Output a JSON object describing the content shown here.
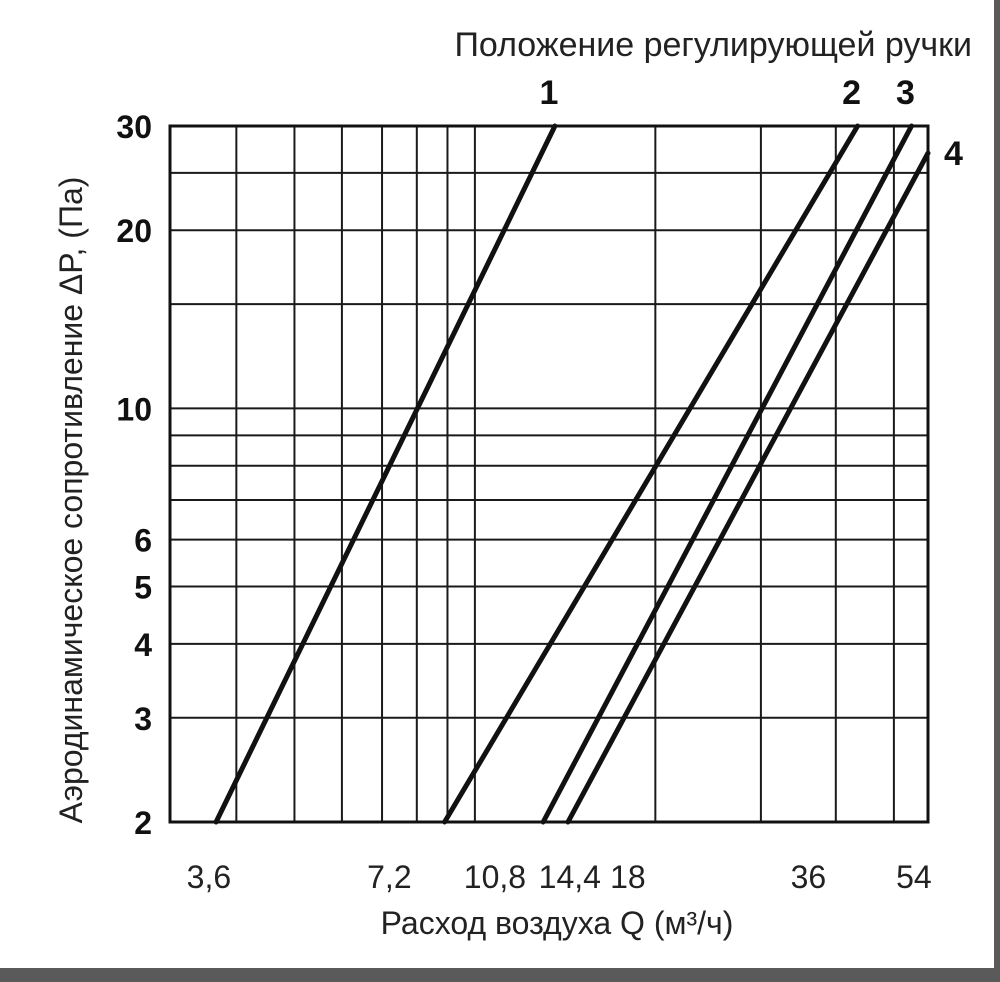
{
  "chart_data": {
    "type": "line",
    "title": "Положение регулирующей ручки",
    "xlabel": "Расход воздуха Q (м³/ч)",
    "ylabel": "Аэродинамическое сопротивление ΔP, (Па)",
    "x_scale": "log",
    "y_scale": "log",
    "xlim": [
      3.1,
      57
    ],
    "ylim": [
      2,
      30
    ],
    "x_ticks": [
      "3,6",
      "7,2",
      "10,8",
      "14,4",
      "18",
      "36",
      "54"
    ],
    "y_ticks": [
      "2",
      "3",
      "4",
      "5",
      "6",
      "10",
      "20",
      "30"
    ],
    "grid": true,
    "series": [
      {
        "name": "1",
        "x": [
          3.7,
          13.6
        ],
        "y": [
          2,
          30
        ]
      },
      {
        "name": "2",
        "x": [
          8.9,
          43.5
        ],
        "y": [
          2,
          30
        ]
      },
      {
        "name": "3",
        "x": [
          13.0,
          53.5
        ],
        "y": [
          2,
          30
        ]
      },
      {
        "name": "4",
        "x": [
          14.3,
          57.0
        ],
        "y": [
          2,
          27
        ]
      }
    ]
  }
}
